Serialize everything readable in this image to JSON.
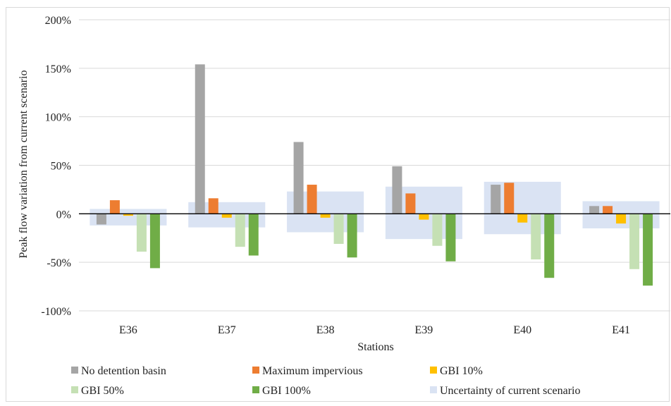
{
  "chart_data": {
    "type": "bar",
    "ylabel": "Peak flow variation from current scenario",
    "xlabel": "Stations",
    "ylim": [
      -100,
      200
    ],
    "yticks": [
      200,
      150,
      100,
      50,
      0,
      -50,
      -100
    ],
    "ytick_labels": [
      "200%",
      "150%",
      "100%",
      "50%",
      "0%",
      "-50%",
      "-100%"
    ],
    "grid": true,
    "legend_position": "bottom",
    "categories": [
      "E36",
      "E37",
      "E38",
      "E39",
      "E40",
      "E41"
    ],
    "series": [
      {
        "name": "No detention basin",
        "color": "#a5a5a5",
        "values": [
          -11,
          154,
          74,
          49,
          30,
          8
        ]
      },
      {
        "name": "Maximum impervious",
        "color": "#ed7d31",
        "values": [
          14,
          16,
          30,
          21,
          32,
          8
        ]
      },
      {
        "name": "GBI 10%",
        "color": "#ffc000",
        "values": [
          -2,
          -4,
          -4,
          -6,
          -9,
          -10
        ]
      },
      {
        "name": "GBI 50%",
        "color": "#c5e0b4",
        "values": [
          -39,
          -34,
          -31,
          -33,
          -47,
          -57
        ]
      },
      {
        "name": "GBI 100%",
        "color": "#70ad47",
        "values": [
          -56,
          -43,
          -45,
          -49,
          -66,
          -74
        ]
      }
    ],
    "uncertainty": {
      "name": "Uncertainty of current scenario",
      "color": "#dae3f3",
      "ranges": [
        [
          -12,
          5
        ],
        [
          -14,
          12
        ],
        [
          -19,
          23
        ],
        [
          -26,
          28
        ],
        [
          -21,
          33
        ],
        [
          -15,
          13
        ]
      ]
    },
    "legend": [
      "No detention basin",
      "Maximum impervious",
      "GBI 10%",
      "GBI 50%",
      "GBI 100%",
      "Uncertainty of current scenario"
    ]
  }
}
